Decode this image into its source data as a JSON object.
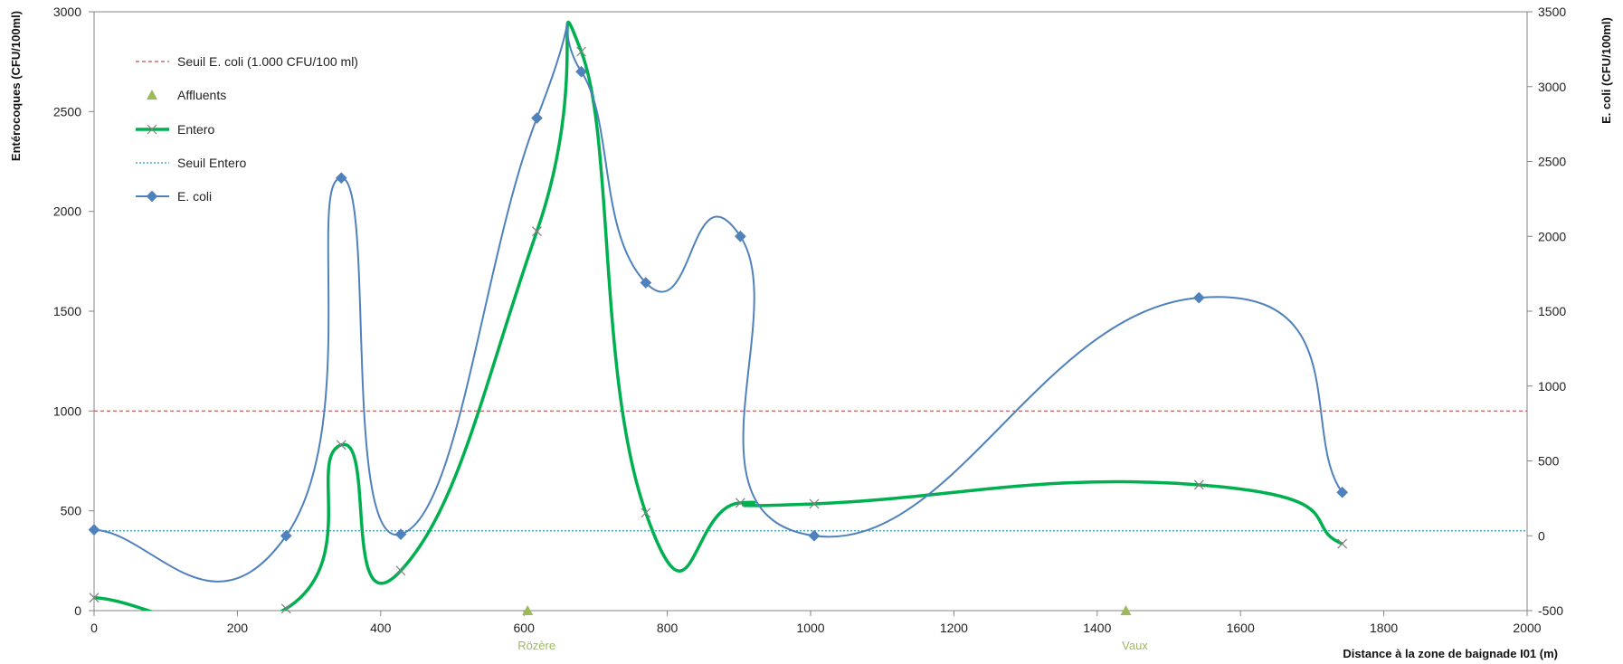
{
  "chart_data": {
    "type": "line",
    "xlabel": "Distance à la zone de baignade I01 (m)",
    "ylabel_left": "Entérocoques (CFU/100ml)",
    "ylabel_right": "E. coli (CFU/100ml)",
    "xlim": [
      0,
      2000
    ],
    "ylim_left": [
      0,
      3000
    ],
    "ylim_right": [
      -500,
      3500
    ],
    "xticks": [
      "0",
      "200",
      "400",
      "600",
      "800",
      "1000",
      "1200",
      "1400",
      "1600",
      "1800",
      "2000"
    ],
    "yticks_left": [
      "0",
      "500",
      "1000",
      "1500",
      "2000",
      "2500",
      "3000"
    ],
    "yticks_right": [
      "-500",
      "0",
      "500",
      "1000",
      "1500",
      "2000",
      "2500",
      "3000",
      "3500"
    ],
    "grid": false,
    "legend_position": "top-left",
    "legend": [
      "Seuil E. coli (1.000 CFU/100 ml)",
      "Affluents",
      "Entero",
      "Seuil Entero",
      "E. coli"
    ],
    "colors": {
      "ecoli": "#4f81bd",
      "entero": "#00b050",
      "entero_marker": "#7f7f7f",
      "seuil_ecoli": "#c0504d",
      "seuil_entero": "#4bacc6",
      "affluents": "#9bbb59"
    },
    "series": [
      {
        "name": "E. coli",
        "axis": "right",
        "x": [
          0,
          268,
          345,
          428,
          618,
          680,
          770,
          902,
          1005,
          1542,
          1742
        ],
        "y": [
          40,
          0,
          2390,
          10,
          2790,
          3100,
          1690,
          2000,
          0,
          1590,
          290
        ]
      },
      {
        "name": "Entero",
        "axis": "left",
        "x": [
          0,
          268,
          345,
          428,
          618,
          680,
          770,
          902,
          1005,
          1542,
          1742
        ],
        "y": [
          65,
          10,
          830,
          200,
          1900,
          2800,
          490,
          540,
          535,
          630,
          335
        ]
      },
      {
        "name": "Seuil E. coli (1.000 CFU/100 ml)",
        "axis": "left",
        "value": 1000
      },
      {
        "name": "Seuil Entero",
        "axis": "left",
        "value": 400
      },
      {
        "name": "Affluents",
        "axis": "left",
        "points": [
          {
            "x": 605,
            "y": 0,
            "label": "Rözère"
          },
          {
            "x": 1440,
            "y": 0,
            "label": "Vaux"
          }
        ]
      }
    ]
  }
}
